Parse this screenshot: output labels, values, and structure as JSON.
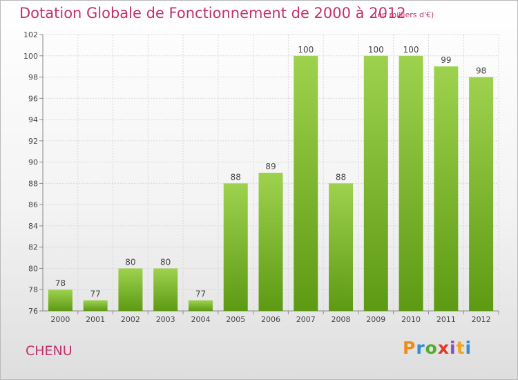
{
  "title": "Dotation Globale de Fonctionnement de 2000 à 2012",
  "subtitle": "(en milliers d'€)",
  "commune": "CHENU",
  "logo": {
    "letters": [
      "P",
      "r",
      "o",
      "x",
      "i",
      "t",
      "i"
    ],
    "colors": [
      "#f08a16",
      "#2f8fd8",
      "#4fae2f",
      "#e2372c",
      "#8a4fc2",
      "#f0a51c",
      "#2f8fd8"
    ]
  },
  "colors": {
    "title": "#c4306c",
    "bar_light": "#9ed24e",
    "bar_dark": "#5d9a14"
  },
  "chart_data": {
    "type": "bar",
    "categories": [
      "2000",
      "2001",
      "2002",
      "2003",
      "2004",
      "2005",
      "2006",
      "2007",
      "2008",
      "2009",
      "2010",
      "2011",
      "2012"
    ],
    "values": [
      78,
      77,
      80,
      80,
      77,
      88,
      89,
      100,
      88,
      100,
      100,
      99,
      98
    ],
    "ylim": [
      76,
      102
    ],
    "yticks": [
      76,
      78,
      80,
      82,
      84,
      86,
      88,
      90,
      92,
      94,
      96,
      98,
      100,
      102
    ],
    "grid": true,
    "xlabel": "",
    "ylabel": ""
  }
}
